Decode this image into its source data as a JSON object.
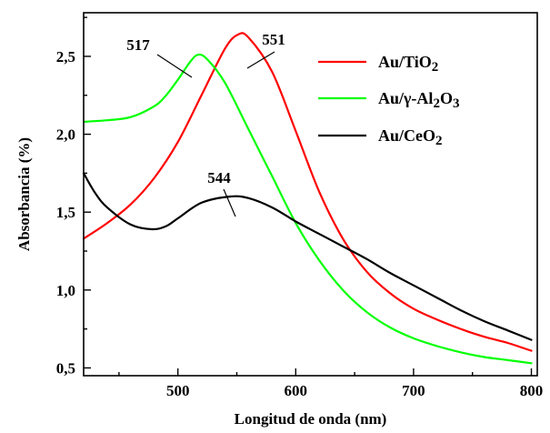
{
  "chart_data": {
    "type": "line",
    "xlabel": "Longitud de onda (nm)",
    "ylabel": "Absorbancia (%)",
    "xlim": [
      420,
      805
    ],
    "ylim": [
      0.45,
      2.78
    ],
    "x_ticks": [
      500,
      600,
      700,
      800
    ],
    "x_tick_labels": [
      "500",
      "600",
      "700",
      "800"
    ],
    "y_ticks": [
      0.5,
      1.0,
      1.5,
      2.0,
      2.5
    ],
    "y_tick_labels": [
      "0,5",
      "1,0",
      "1,5",
      "2,0",
      "2,5"
    ],
    "grid": false,
    "legend_position": "top-right",
    "series": [
      {
        "name": "Au/TiO2",
        "legend_text": "Au/TiO",
        "legend_sub": "2",
        "color": "#ff0000",
        "x": [
          420,
          440,
          460,
          480,
          500,
          520,
          540,
          551,
          560,
          580,
          600,
          620,
          640,
          660,
          680,
          700,
          720,
          740,
          760,
          780,
          800
        ],
        "y": [
          1.33,
          1.43,
          1.55,
          1.72,
          1.95,
          2.25,
          2.55,
          2.64,
          2.62,
          2.4,
          2.02,
          1.63,
          1.33,
          1.12,
          0.98,
          0.88,
          0.81,
          0.75,
          0.7,
          0.66,
          0.61
        ]
      },
      {
        "name": "Au/γ-Al2O3",
        "legend_text": "Au/γ-Al",
        "legend_sub": "2",
        "legend_mid": "O",
        "legend_sub2": "3",
        "color": "#00ff00",
        "x": [
          420,
          440,
          460,
          480,
          490,
          500,
          510,
          517,
          525,
          540,
          560,
          580,
          600,
          620,
          640,
          660,
          680,
          700,
          720,
          740,
          760,
          780,
          800
        ],
        "y": [
          2.08,
          2.09,
          2.11,
          2.18,
          2.25,
          2.35,
          2.46,
          2.51,
          2.48,
          2.33,
          2.03,
          1.73,
          1.43,
          1.19,
          1.0,
          0.86,
          0.76,
          0.69,
          0.64,
          0.6,
          0.57,
          0.55,
          0.53
        ]
      },
      {
        "name": "Au/CeO2",
        "legend_text": "Au/CeO",
        "legend_sub": "2",
        "color": "#000000",
        "x": [
          420,
          430,
          440,
          460,
          478,
          490,
          500,
          520,
          544,
          560,
          580,
          600,
          620,
          640,
          660,
          680,
          700,
          720,
          740,
          760,
          780,
          800
        ],
        "y": [
          1.75,
          1.62,
          1.53,
          1.42,
          1.39,
          1.41,
          1.46,
          1.56,
          1.6,
          1.59,
          1.53,
          1.44,
          1.36,
          1.28,
          1.2,
          1.11,
          1.03,
          0.95,
          0.87,
          0.8,
          0.74,
          0.68
        ]
      }
    ],
    "annotations": [
      {
        "text": "517",
        "x": 517,
        "y": 2.51,
        "series": "Au/γ-Al2O3"
      },
      {
        "text": "551",
        "x": 551,
        "y": 2.64,
        "series": "Au/TiO2"
      },
      {
        "text": "544",
        "x": 544,
        "y": 1.6,
        "series": "Au/CeO2"
      }
    ]
  }
}
